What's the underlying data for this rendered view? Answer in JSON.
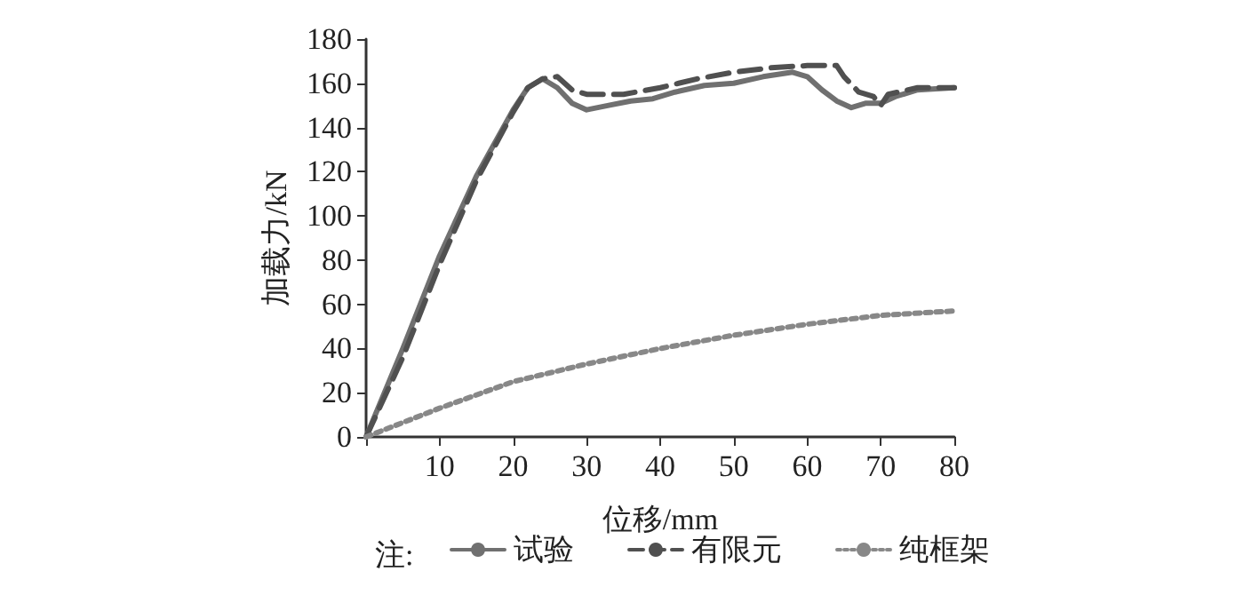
{
  "chart_data": {
    "type": "line",
    "xlabel": "位移/mm",
    "ylabel": "加载力/kN",
    "legend_title": "注:",
    "legend": "bottom",
    "grid": false,
    "marker": "none",
    "xlim": [
      0,
      80
    ],
    "xticks": [
      {
        "value": 0,
        "label": null
      },
      10,
      20,
      30,
      40,
      50,
      60,
      70,
      80
    ],
    "ylim": [
      0,
      180
    ],
    "yticks": [
      0,
      20,
      40,
      60,
      80,
      100,
      120,
      140,
      160,
      180
    ],
    "series": [
      {
        "name": "试验",
        "color": "#707070",
        "line_style": "solid",
        "x": [
          0,
          5,
          10,
          15,
          20,
          22,
          24,
          26,
          28,
          30,
          33,
          36,
          39,
          42,
          46,
          50,
          54,
          58,
          60,
          62,
          64,
          66,
          68,
          70,
          72,
          75,
          80
        ],
        "values": [
          0,
          40,
          82,
          118,
          148,
          158,
          162,
          158,
          151,
          148,
          150,
          152,
          153,
          156,
          159,
          160,
          163,
          165,
          163,
          157,
          152,
          149,
          151,
          151,
          154,
          157,
          158
        ]
      },
      {
        "name": "有限元",
        "color": "#505050",
        "line_style": "dashed",
        "x": [
          0,
          5,
          10,
          15,
          20,
          22,
          24,
          26,
          28,
          30,
          35,
          40,
          45,
          50,
          55,
          60,
          64,
          65,
          67,
          69,
          70,
          71,
          75,
          80
        ],
        "values": [
          0,
          36,
          78,
          116,
          147,
          158,
          162,
          163,
          157,
          155,
          155,
          158,
          162,
          165,
          167,
          168,
          168,
          163,
          156,
          154,
          150,
          155,
          158,
          158
        ]
      },
      {
        "name": "纯框架",
        "color": "#888888",
        "line_style": "dotted",
        "x": [
          0,
          10,
          20,
          30,
          40,
          50,
          60,
          70,
          80
        ],
        "values": [
          0,
          13,
          25,
          33,
          40,
          46,
          51,
          55,
          57
        ]
      }
    ]
  }
}
